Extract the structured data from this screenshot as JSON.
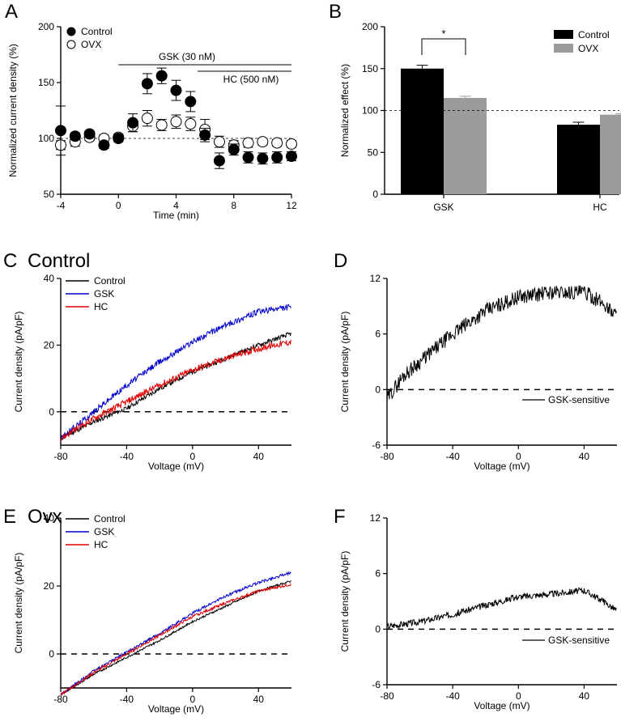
{
  "figure": {
    "panels": [
      {
        "label": "A",
        "subtitle": ""
      },
      {
        "label": "B",
        "subtitle": ""
      },
      {
        "label": "C",
        "subtitle": "Control"
      },
      {
        "label": "D",
        "subtitle": ""
      },
      {
        "label": "E",
        "subtitle": "Ovx"
      },
      {
        "label": "F",
        "subtitle": ""
      }
    ]
  },
  "chart_data": [
    {
      "panel": "A",
      "type": "scatter",
      "xlabel": "Time (min)",
      "ylabel": "Normalized current density (%)",
      "xlim": [
        -4,
        12
      ],
      "ylim": [
        50,
        200
      ],
      "xticks": [
        -4,
        0,
        4,
        8,
        12
      ],
      "yticks": [
        50,
        100,
        150,
        200
      ],
      "reference_line": 100,
      "legend": {
        "position": "top-left",
        "entries": [
          "Control",
          "OVX"
        ]
      },
      "annotations": [
        {
          "text": "GSK (30 nM)",
          "x_start": 0,
          "x_end": 12
        },
        {
          "text": "HC (500 nM)",
          "x_start": 5.5,
          "x_end": 12
        }
      ],
      "series": [
        {
          "name": "Control",
          "marker": "filled-circle",
          "x": [
            -4,
            -3,
            -2,
            -1,
            0,
            1,
            2,
            3,
            4,
            5,
            6,
            7,
            8,
            9,
            10,
            11,
            12
          ],
          "y": [
            107,
            102,
            104,
            94,
            100,
            114,
            149,
            156,
            143,
            133,
            103,
            80,
            90,
            83,
            82,
            83,
            84
          ],
          "error": [
            22,
            3,
            3,
            3,
            3,
            8,
            9,
            7,
            9,
            9,
            6,
            7,
            5,
            5,
            5,
            5,
            4
          ]
        },
        {
          "name": "OVX",
          "marker": "open-circle",
          "x": [
            -4,
            -3,
            -2,
            -1,
            0,
            1,
            2,
            3,
            4,
            5,
            6,
            7,
            8,
            9,
            10,
            11,
            12
          ],
          "y": [
            94,
            97,
            101,
            100,
            101,
            111,
            118,
            112,
            115,
            113,
            108,
            97,
            94,
            96,
            97,
            96,
            95
          ],
          "error": [
            4,
            4,
            3,
            3,
            3,
            5,
            7,
            5,
            6,
            6,
            9,
            5,
            4,
            4,
            3,
            3,
            3
          ]
        }
      ]
    },
    {
      "panel": "B",
      "type": "bar",
      "categories": [
        "GSK",
        "HC"
      ],
      "ylabel": "Normalized effect (%)",
      "ylim": [
        0,
        200
      ],
      "yticks": [
        0,
        50,
        100,
        150,
        200
      ],
      "reference_line": 100,
      "significance": {
        "text": "*",
        "between": [
          "GSK:Control",
          "GSK:OVX"
        ]
      },
      "legend": {
        "position": "top-right",
        "entries": [
          "Control",
          "OVX"
        ]
      },
      "series": [
        {
          "name": "Control",
          "color": "#000000",
          "values": [
            150,
            83
          ],
          "error": [
            4,
            3
          ]
        },
        {
          "name": "OVX",
          "color": "#9b9b9b",
          "values": [
            115,
            95
          ],
          "error": [
            2,
            1
          ]
        }
      ]
    },
    {
      "panel": "C",
      "type": "line",
      "xlabel": "Voltage (mV)",
      "ylabel": "Current density (pA/pF)",
      "xlim": [
        -80,
        60
      ],
      "ylim": [
        -10,
        40
      ],
      "xticks": [
        -80,
        -40,
        0,
        40
      ],
      "yticks": [
        0,
        20,
        40
      ],
      "zero_line": "dashed",
      "legend": {
        "position": "top-left",
        "entries": [
          "Control",
          "GSK",
          "HC"
        ]
      },
      "series": [
        {
          "name": "Control",
          "color": "#000000",
          "x": [
            -80,
            -60,
            -40,
            -20,
            0,
            20,
            40,
            60
          ],
          "y": [
            -8,
            -3,
            1,
            7,
            12,
            16,
            20,
            23.5
          ],
          "noise": 0.7
        },
        {
          "name": "GSK",
          "color": "#0000cc",
          "x": [
            -80,
            -60,
            -40,
            -20,
            0,
            20,
            40,
            60
          ],
          "y": [
            -8,
            0,
            8,
            15,
            21,
            26,
            30,
            31.5
          ],
          "noise": 0.9
        },
        {
          "name": "HC",
          "color": "#dd0000",
          "x": [
            -80,
            -60,
            -40,
            -20,
            0,
            20,
            40,
            60
          ],
          "y": [
            -8,
            -2,
            3,
            8,
            12.5,
            16,
            19,
            21
          ],
          "noise": 1.0
        }
      ]
    },
    {
      "panel": "D",
      "type": "line",
      "xlabel": "Voltage (mV)",
      "ylabel": "Current density (pA/pF)",
      "xlim": [
        -80,
        60
      ],
      "ylim": [
        -6,
        12
      ],
      "xticks": [
        -80,
        -40,
        0,
        40
      ],
      "yticks": [
        -6,
        0,
        6,
        12
      ],
      "zero_line": "dashed",
      "legend": {
        "position": "bottom-right",
        "entries": [
          "GSK-sensitive"
        ]
      },
      "series": [
        {
          "name": "GSK-sensitive",
          "color": "#000000",
          "x": [
            -80,
            -70,
            -60,
            -40,
            -20,
            0,
            20,
            40,
            50,
            60
          ],
          "y": [
            -1,
            1.5,
            3,
            6,
            8.5,
            10,
            10.5,
            10.5,
            9.5,
            8
          ],
          "noise": 0.8
        }
      ]
    },
    {
      "panel": "E",
      "type": "line",
      "xlabel": "Voltage (mV)",
      "ylabel": "Current density (pA/pF)",
      "xlim": [
        -80,
        60
      ],
      "ylim": [
        -10,
        40
      ],
      "xticks": [
        -80,
        -40,
        0,
        40
      ],
      "yticks": [
        0,
        20,
        40
      ],
      "zero_line": "dashed",
      "legend": {
        "position": "top-left",
        "entries": [
          "Control",
          "GSK",
          "HC"
        ]
      },
      "series": [
        {
          "name": "Control",
          "color": "#000000",
          "x": [
            -80,
            -60,
            -40,
            -20,
            0,
            20,
            40,
            60
          ],
          "y": [
            -12,
            -6,
            -1,
            4,
            9.5,
            14,
            18.5,
            21.5
          ],
          "noise": 0.3
        },
        {
          "name": "GSK",
          "color": "#0000cc",
          "x": [
            -80,
            -60,
            -40,
            -20,
            0,
            20,
            40,
            60
          ],
          "y": [
            -12,
            -5,
            0.5,
            6,
            12,
            17,
            21,
            24
          ],
          "noise": 0.4
        },
        {
          "name": "HC",
          "color": "#dd0000",
          "x": [
            -80,
            -60,
            -40,
            -20,
            0,
            20,
            40,
            60
          ],
          "y": [
            -12,
            -5.5,
            0,
            5.5,
            11,
            15,
            18.5,
            20.5
          ],
          "noise": 0.4
        }
      ]
    },
    {
      "panel": "F",
      "type": "line",
      "xlabel": "Voltage (mV)",
      "ylabel": "Current density (pA/pF)",
      "xlim": [
        -80,
        60
      ],
      "ylim": [
        -6,
        12
      ],
      "xticks": [
        -80,
        -40,
        0,
        40
      ],
      "yticks": [
        -6,
        0,
        6,
        12
      ],
      "zero_line": "dashed",
      "legend": {
        "position": "bottom-right",
        "entries": [
          "GSK-sensitive"
        ]
      },
      "series": [
        {
          "name": "GSK-sensitive",
          "color": "#000000",
          "x": [
            -80,
            -60,
            -40,
            -20,
            0,
            20,
            40,
            50,
            60
          ],
          "y": [
            0.3,
            0.8,
            1.6,
            2.6,
            3.5,
            3.8,
            4.2,
            3.2,
            2
          ],
          "noise": 0.35
        }
      ]
    }
  ]
}
